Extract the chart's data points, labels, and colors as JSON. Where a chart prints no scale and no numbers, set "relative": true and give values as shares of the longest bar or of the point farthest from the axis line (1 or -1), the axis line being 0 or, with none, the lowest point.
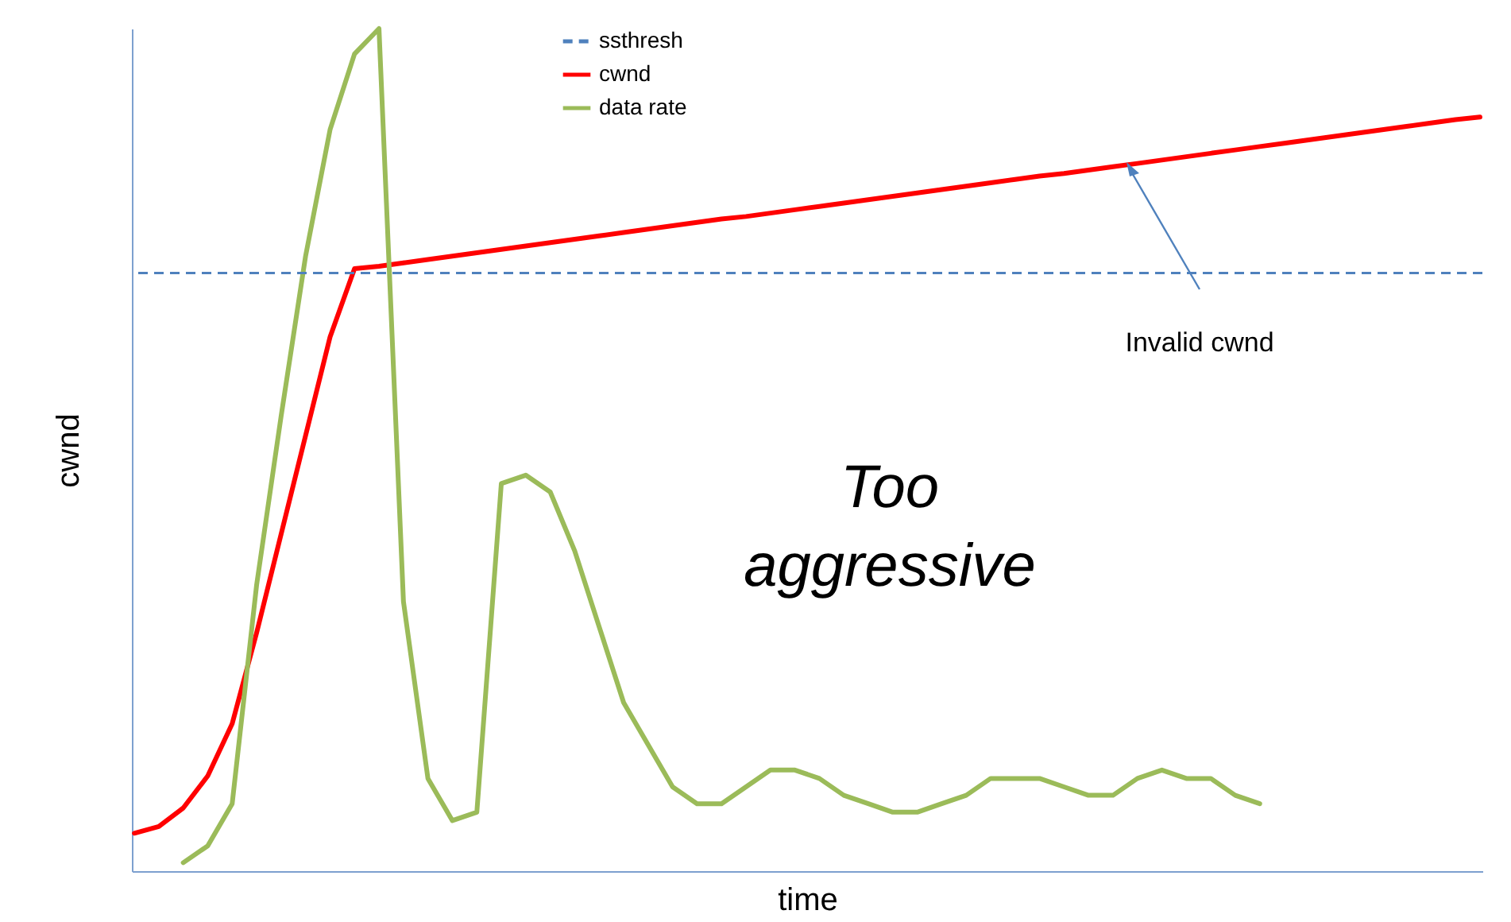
{
  "chart_data": {
    "type": "line",
    "relative": true,
    "xlabel": "time",
    "ylabel": "cwnd",
    "legend": "top",
    "categories": [
      null,
      null,
      null,
      null,
      null,
      null,
      null,
      null,
      null,
      null,
      null,
      null,
      null,
      null,
      null,
      null,
      null,
      null,
      null,
      null,
      null,
      null,
      null,
      null,
      null,
      null,
      null,
      null,
      null,
      null,
      null,
      null,
      null,
      null,
      null,
      null,
      null,
      null,
      null,
      null,
      null,
      null,
      null,
      null,
      null,
      null,
      null,
      null,
      null,
      null,
      null,
      null,
      null,
      null,
      null,
      null
    ],
    "ref_lines": [
      {
        "axis": "y",
        "value": 0.71,
        "label": "ssthresh",
        "color": "#4f81bd",
        "line_style": "dashed"
      }
    ],
    "series": [
      {
        "name": "cwnd",
        "color": "#ff0000",
        "values": [
          0.045,
          0.053,
          0.075,
          0.113,
          0.175,
          0.283,
          0.4,
          0.517,
          0.634,
          0.715,
          0.718,
          0.722,
          0.726,
          0.73,
          0.734,
          0.738,
          0.742,
          0.746,
          0.75,
          0.754,
          0.758,
          0.762,
          0.766,
          0.77,
          0.774,
          0.777,
          0.781,
          0.785,
          0.789,
          0.793,
          0.797,
          0.801,
          0.805,
          0.809,
          0.813,
          0.817,
          0.821,
          0.825,
          0.828,
          0.832,
          0.836,
          0.84,
          0.844,
          0.848,
          0.852,
          0.856,
          0.86,
          0.864,
          0.868,
          0.872,
          0.876,
          0.88,
          0.884,
          0.888,
          0.892,
          0.895
        ]
      },
      {
        "name": "data rate",
        "color": "#9bbb59",
        "values": [
          null,
          null,
          0.01,
          0.03,
          0.08,
          0.34,
          0.54,
          0.73,
          0.88,
          0.97,
          1,
          0.32,
          0.11,
          0.06,
          0.07,
          0.46,
          0.47,
          0.45,
          0.38,
          0.29,
          0.2,
          0.15,
          0.1,
          0.08,
          0.08,
          0.1,
          0.12,
          0.12,
          0.11,
          0.09,
          0.08,
          0.07,
          0.07,
          0.08,
          0.09,
          0.11,
          0.11,
          0.11,
          0.1,
          0.09,
          0.09,
          0.11,
          0.12,
          0.11,
          0.11,
          0.09,
          0.08,
          null,
          null,
          null,
          null,
          null,
          null,
          null,
          null,
          null
        ]
      }
    ],
    "annotations": [
      "Invalid cwnd",
      "Too aggressive"
    ]
  }
}
